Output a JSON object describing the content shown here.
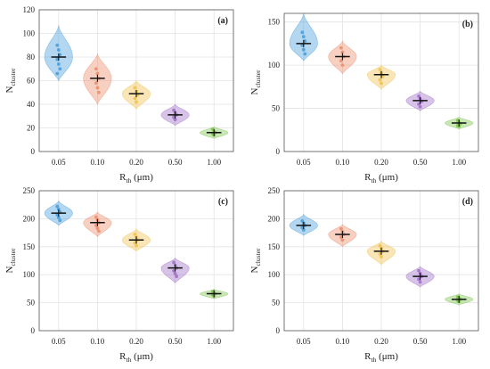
{
  "chart_data": [
    {
      "type": "violin",
      "panel": "(a)",
      "xlabel": "R",
      "xlabel_sub": "th",
      "xlabel_unit": "(μm)",
      "ylabel": "N",
      "ylabel_sub": "cluster",
      "categories": [
        "0.05",
        "0.10",
        "0.20",
        "0.50",
        "1.00"
      ],
      "ylim": [
        0,
        120
      ],
      "yticks": [
        0,
        20,
        40,
        60,
        80,
        100,
        120
      ],
      "grid": true,
      "medians": [
        80,
        62,
        49,
        31,
        16
      ],
      "violin_min": [
        60,
        40,
        36,
        22,
        11
      ],
      "violin_max": [
        107,
        83,
        60,
        40,
        21
      ],
      "points": [
        [
          90,
          86,
          82,
          78,
          74,
          70,
          66
        ],
        [
          70,
          66,
          62,
          58,
          54,
          50
        ],
        [
          54,
          51,
          48,
          45,
          42
        ],
        [
          35,
          33,
          31,
          29,
          27
        ],
        [
          19,
          17,
          16,
          15,
          14
        ]
      ]
    },
    {
      "type": "violin",
      "panel": "(b)",
      "xlabel": "R",
      "xlabel_sub": "th",
      "xlabel_unit": "(μm)",
      "ylabel": "N",
      "ylabel_sub": "cluster",
      "categories": [
        "0.05",
        "0.10",
        "0.20",
        "0.50",
        "1.00"
      ],
      "ylim": [
        0,
        160
      ],
      "yticks": [
        0,
        50,
        100,
        150
      ],
      "grid": true,
      "medians": [
        125,
        110,
        89,
        59,
        33
      ],
      "violin_min": [
        105,
        90,
        72,
        47,
        26
      ],
      "violin_max": [
        160,
        128,
        100,
        70,
        40
      ],
      "points": [
        [
          138,
          133,
          128,
          123,
          118,
          113
        ],
        [
          120,
          115,
          110,
          105,
          100
        ],
        [
          95,
          91,
          87,
          83,
          79
        ],
        [
          64,
          61,
          58,
          55,
          52
        ],
        [
          36,
          34,
          32,
          30,
          29
        ]
      ]
    },
    {
      "type": "violin",
      "panel": "(c)",
      "xlabel": "R",
      "xlabel_sub": "th",
      "xlabel_unit": "(μm)",
      "ylabel": "N",
      "ylabel_sub": "cluster",
      "categories": [
        "0.05",
        "0.10",
        "0.20",
        "0.50",
        "1.00"
      ],
      "ylim": [
        0,
        250
      ],
      "yticks": [
        0,
        50,
        100,
        150,
        200,
        250
      ],
      "grid": true,
      "medians": [
        210,
        193,
        162,
        112,
        66
      ],
      "violin_min": [
        188,
        168,
        142,
        85,
        57
      ],
      "violin_max": [
        232,
        212,
        182,
        130,
        74
      ],
      "points": [
        [
          222,
          217,
          212,
          207,
          202,
          197
        ],
        [
          203,
          198,
          193,
          188,
          183,
          178
        ],
        [
          172,
          167,
          162,
          157,
          152
        ],
        [
          122,
          117,
          112,
          107,
          102,
          97
        ],
        [
          70,
          68,
          66,
          64,
          62
        ]
      ]
    },
    {
      "type": "violin",
      "panel": "(d)",
      "xlabel": "R",
      "xlabel_sub": "th",
      "xlabel_unit": "(μm)",
      "ylabel": "N",
      "ylabel_sub": "cluster",
      "categories": [
        "0.05",
        "0.10",
        "0.20",
        "0.50",
        "1.00"
      ],
      "ylim": [
        0,
        250
      ],
      "yticks": [
        0,
        50,
        100,
        150,
        200,
        250
      ],
      "grid": true,
      "medians": [
        188,
        172,
        142,
        97,
        56
      ],
      "violin_min": [
        170,
        150,
        118,
        78,
        46
      ],
      "violin_max": [
        208,
        190,
        160,
        115,
        66
      ],
      "points": [
        [
          196,
          192,
          188,
          184,
          180
        ],
        [
          182,
          177,
          172,
          167,
          162
        ],
        [
          152,
          147,
          142,
          137,
          132
        ],
        [
          107,
          102,
          97,
          92,
          87
        ],
        [
          60,
          58,
          56,
          54,
          52
        ]
      ]
    }
  ],
  "colors": [
    "#4a9fdb",
    "#ec8e6e",
    "#f1c24e",
    "#a171c8",
    "#7fc44f"
  ]
}
